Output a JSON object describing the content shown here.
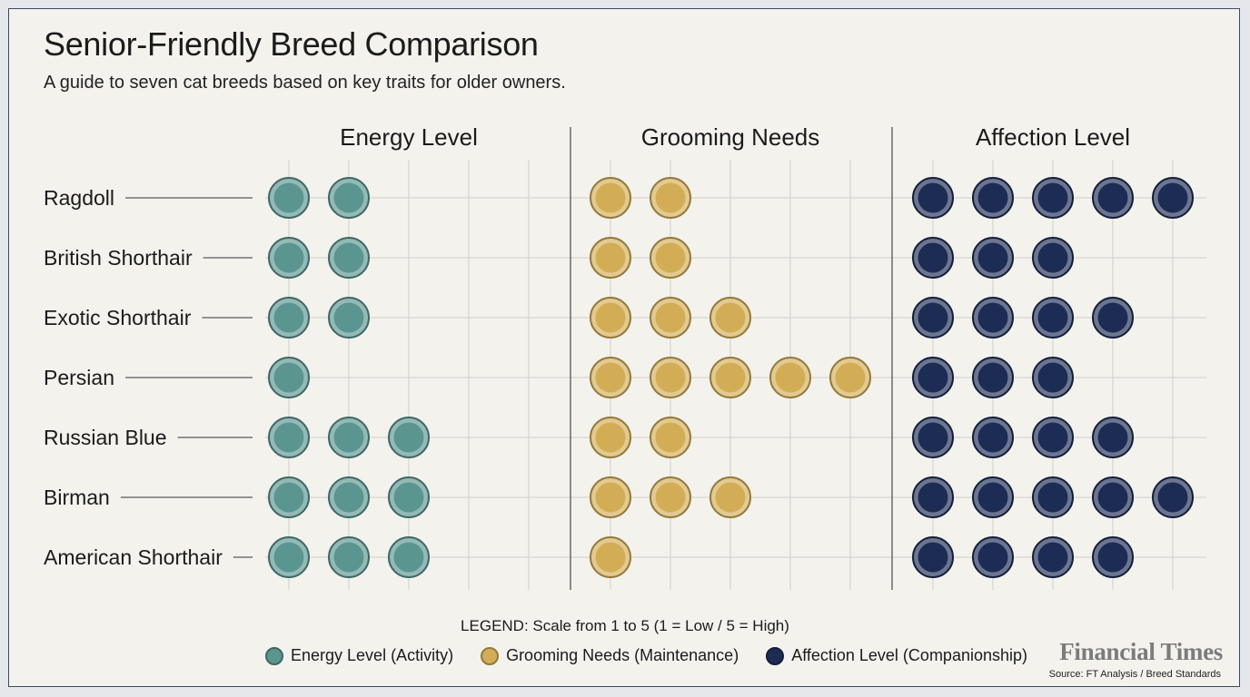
{
  "title": "Senior-Friendly Breed Comparison",
  "subtitle": "A guide to seven cat breeds based on key traits for older owners.",
  "legend": {
    "title": "LEGEND: Scale from 1 to 5 (1 = Low / 5 = High)",
    "items": [
      {
        "label": "Energy Level (Activity)",
        "color": "#5b9590"
      },
      {
        "label": "Grooming Needs (Maintenance)",
        "color": "#d3ad55"
      },
      {
        "label": "Affection Level (Companionship)",
        "color": "#1d2c54"
      }
    ]
  },
  "brand": "Financial Times",
  "source": "Source: FT Analysis / Breed Standards",
  "chart_data": {
    "type": "dot-matrix",
    "scale": [
      1,
      5
    ],
    "categories": [
      "Ragdoll",
      "British Shorthair",
      "Exotic Shorthair",
      "Persian",
      "Russian Blue",
      "Birman",
      "American Shorthair"
    ],
    "series": [
      {
        "name": "Energy Level",
        "color": "#5b9590",
        "values": [
          2,
          2,
          2,
          1,
          3,
          3,
          3
        ]
      },
      {
        "name": "Grooming Needs",
        "color": "#d3ad55",
        "values": [
          2,
          2,
          3,
          5,
          2,
          3,
          1
        ]
      },
      {
        "name": "Affection Level",
        "color": "#1d2c54",
        "values": [
          5,
          3,
          4,
          3,
          4,
          5,
          4
        ]
      }
    ]
  }
}
